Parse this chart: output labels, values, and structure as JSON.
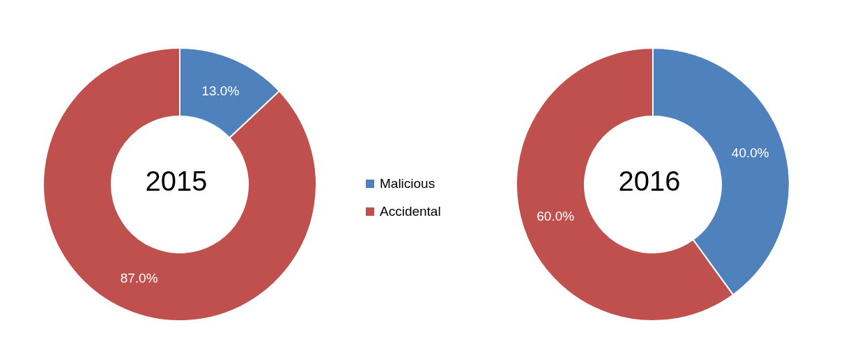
{
  "chart_data": [
    {
      "type": "donut",
      "title": "2015",
      "categories": [
        "Malicious",
        "Accidental"
      ],
      "values": [
        13.0,
        87.0
      ],
      "colors": [
        "#4f81bd",
        "#c0504d"
      ],
      "value_labels": [
        "13.0%",
        "87.0%"
      ],
      "legend": "right"
    },
    {
      "type": "donut",
      "title": "2016",
      "categories": [
        null,
        null
      ],
      "values": [
        40.0,
        60.0
      ],
      "colors": [
        "#4f81bd",
        "#c0504d"
      ],
      "value_labels": [
        "40.0%",
        "60.0%"
      ]
    }
  ]
}
